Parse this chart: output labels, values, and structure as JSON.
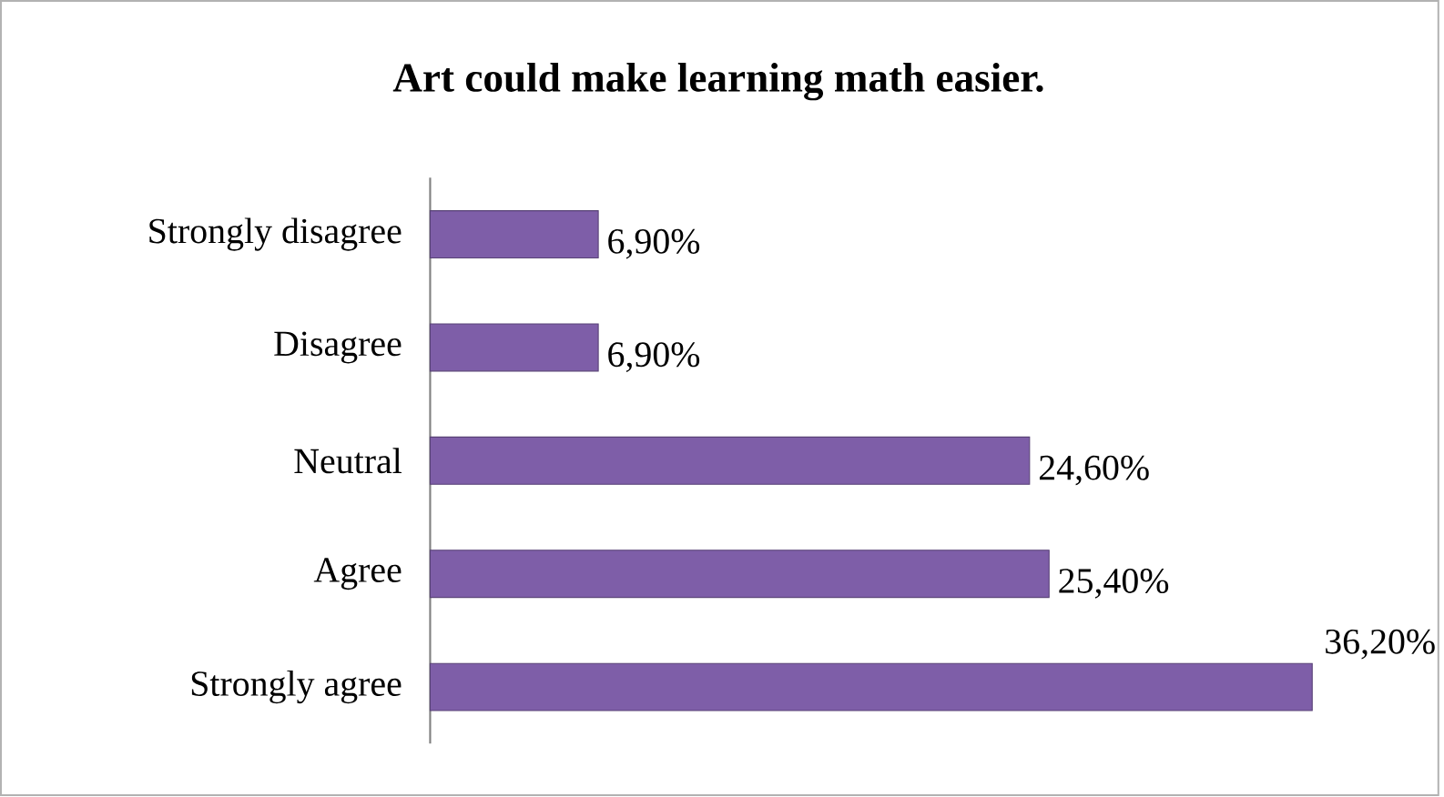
{
  "chart_data": {
    "type": "bar",
    "orientation": "horizontal",
    "title": "Art could make learning math easier.",
    "categories": [
      "Strongly disagree",
      "Disagree",
      "Neutral",
      "Agree",
      "Strongly agree"
    ],
    "values": [
      6.9,
      6.9,
      24.6,
      25.4,
      36.2
    ],
    "value_labels": [
      "6,90%",
      "6,90%",
      "24,60%",
      "25,40%",
      "36,20%"
    ],
    "color": "#7e5ea8"
  }
}
